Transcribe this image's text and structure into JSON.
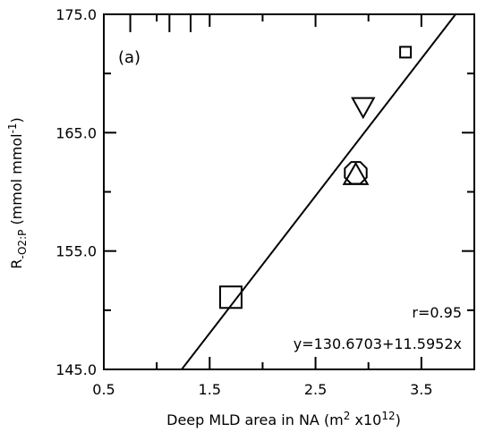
{
  "chart_data": {
    "type": "scatter",
    "panel_label": "(a)",
    "xlabel_prefix": "Deep MLD area in NA (m",
    "xlabel_sup1": "2",
    "xlabel_mid": " x10",
    "xlabel_sup2": "12",
    "xlabel_suffix": ")",
    "ylabel_prefix": "R",
    "ylabel_sub": "-O2:P",
    "ylabel_mid": " (mmol mmol",
    "ylabel_sup": "-1",
    "ylabel_suffix": ")",
    "xlim": [
      0.5,
      4.0
    ],
    "ylim": [
      145.0,
      175.0
    ],
    "x_ticks": [
      {
        "value": 0.5,
        "label": "0.5"
      },
      {
        "value": 1.5,
        "label": "1.5"
      },
      {
        "value": 2.5,
        "label": "2.5"
      },
      {
        "value": 3.5,
        "label": "3.5"
      }
    ],
    "y_ticks": [
      {
        "value": 145.0,
        "label": "145.0"
      },
      {
        "value": 155.0,
        "label": "155.0"
      },
      {
        "value": 165.0,
        "label": "165.0"
      },
      {
        "value": 175.0,
        "label": "175.0"
      }
    ],
    "points": [
      {
        "x": 1.7,
        "y": 151.1,
        "marker": "square",
        "size": "large"
      },
      {
        "x": 2.88,
        "y": 161.6,
        "marker": "octagon",
        "size": "large"
      },
      {
        "x": 2.88,
        "y": 161.4,
        "marker": "triangle-up",
        "size": "large"
      },
      {
        "x": 2.95,
        "y": 167.2,
        "marker": "triangle-down",
        "size": "large"
      },
      {
        "x": 3.35,
        "y": 171.8,
        "marker": "square",
        "size": "small"
      }
    ],
    "regression": {
      "intercept": 130.6703,
      "slope": 11.5952
    },
    "r_text": "r=0.95",
    "equation_text": "y=130.6703+11.5952x",
    "top_ticks": [
      0.75,
      1.12,
      1.32
    ]
  }
}
